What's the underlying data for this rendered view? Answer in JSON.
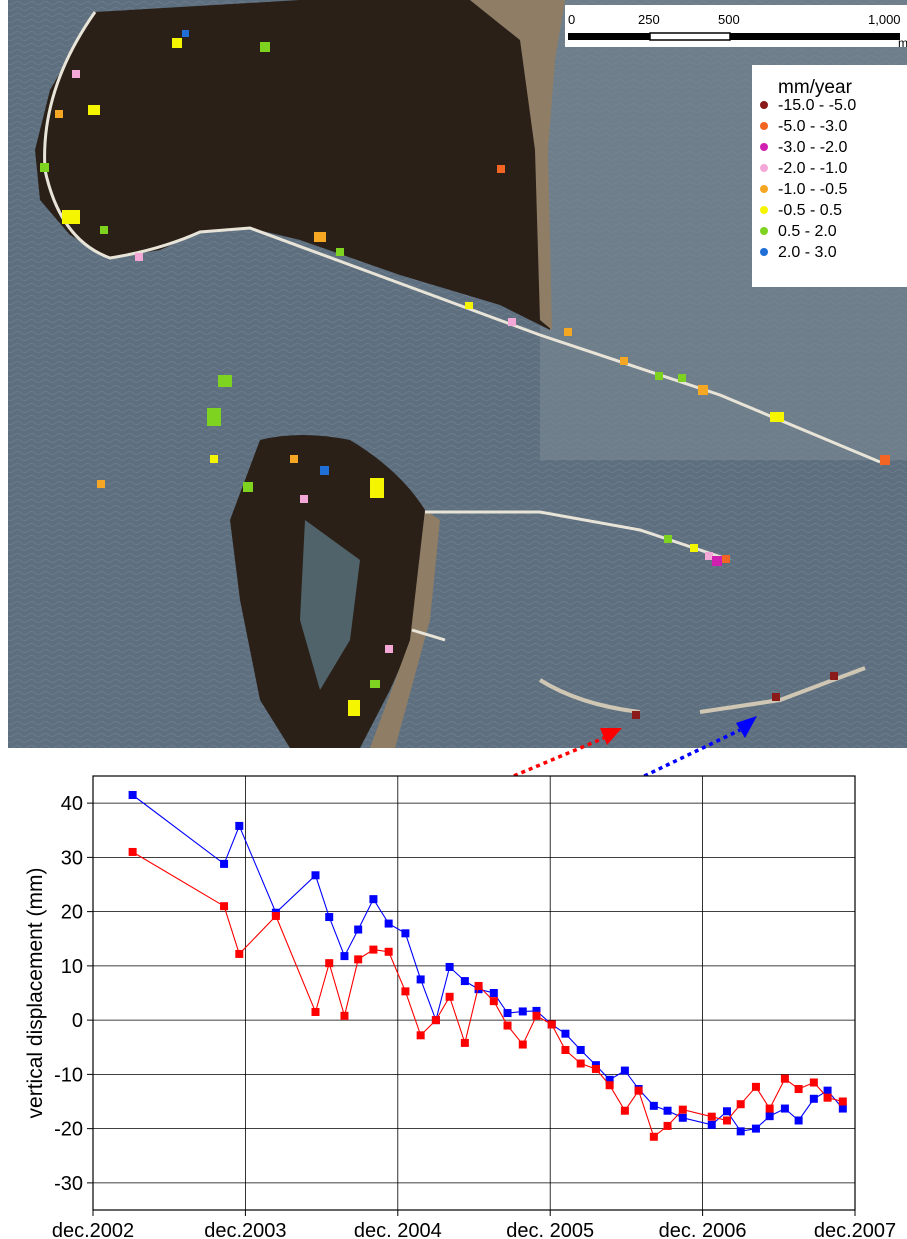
{
  "map": {
    "scale_bar": {
      "ticks": [
        "0",
        "250",
        "500",
        "1,000"
      ],
      "unit": "m"
    },
    "legend": {
      "title": "mm/year",
      "classes": [
        {
          "label": "-15.0  -  -5.0",
          "color": "#8b1a1a"
        },
        {
          "label": "-5.0  -  -3.0",
          "color": "#f26522"
        },
        {
          "label": "-3.0  -  -2.0",
          "color": "#d020b0"
        },
        {
          "label": "-2.0  -  -1.0",
          "color": "#f4a8d8"
        },
        {
          "label": "-1.0  -  -0.5",
          "color": "#f5a623"
        },
        {
          "label": "-0.5  -   0.5",
          "color": "#f5f500"
        },
        {
          "label": "0.5  -   2.0",
          "color": "#7ed321"
        },
        {
          "label": "2.0  -   3.0",
          "color": "#1f6fd6"
        }
      ]
    },
    "colors": {
      "water": "#5e6f7f",
      "land": "#2a2018",
      "beach": "#8f7d65",
      "jetty": "#e8e4d8"
    }
  },
  "chart_data": {
    "type": "line",
    "title": "",
    "xlabel": "",
    "ylabel": "vertical displacement (mm)",
    "x_tick_labels": [
      "dec.2002",
      "dec.2003",
      "dec. 2004",
      "dec. 2005",
      "dec. 2006",
      "dec.2007"
    ],
    "xlim": [
      2002.92,
      2007.92
    ],
    "ylim": [
      -35,
      45
    ],
    "y_ticks": [
      40,
      30,
      20,
      10,
      0,
      -10,
      -20,
      -30
    ],
    "grid": true,
    "series": [
      {
        "color": "#0000ff",
        "x": [
          2003.18,
          2003.78,
          2003.88,
          2004.12,
          2004.38,
          2004.47,
          2004.57,
          2004.66,
          2004.76,
          2004.86,
          2004.97,
          2005.07,
          2005.17,
          2005.26,
          2005.36,
          2005.45,
          2005.55,
          2005.64,
          2005.74,
          2005.83,
          2005.93,
          2006.02,
          2006.12,
          2006.22,
          2006.31,
          2006.41,
          2006.5,
          2006.6,
          2006.69,
          2006.79,
          2006.98,
          2007.08,
          2007.17,
          2007.27,
          2007.36,
          2007.46,
          2007.55,
          2007.65,
          2007.74,
          2007.84
        ],
        "y": [
          41.5,
          28.8,
          35.8,
          19.8,
          26.7,
          19.0,
          11.8,
          16.7,
          22.3,
          17.8,
          16.0,
          7.5,
          0.0,
          9.8,
          7.2,
          5.7,
          5.0,
          1.3,
          1.6,
          1.7,
          -0.8,
          -2.5,
          -5.5,
          -8.3,
          -11.0,
          -9.3,
          -12.7,
          -15.8,
          -16.7,
          -18.0,
          -19.3,
          -16.8,
          -20.5,
          -20.0,
          -17.7,
          -16.3,
          -18.5,
          -14.5,
          -13.0,
          -16.3
        ]
      },
      {
        "color": "#ff0000",
        "x": [
          2003.18,
          2003.78,
          2003.88,
          2004.12,
          2004.38,
          2004.47,
          2004.57,
          2004.66,
          2004.76,
          2004.86,
          2004.97,
          2005.07,
          2005.17,
          2005.26,
          2005.36,
          2005.45,
          2005.55,
          2005.64,
          2005.74,
          2005.83,
          2005.93,
          2006.02,
          2006.12,
          2006.22,
          2006.31,
          2006.41,
          2006.5,
          2006.6,
          2006.69,
          2006.79,
          2006.98,
          2007.08,
          2007.17,
          2007.27,
          2007.36,
          2007.46,
          2007.55,
          2007.65,
          2007.74,
          2007.84
        ],
        "y": [
          31.0,
          21.0,
          12.2,
          19.2,
          1.5,
          10.5,
          0.8,
          11.2,
          13.0,
          12.6,
          5.3,
          -2.8,
          0.0,
          4.3,
          -4.2,
          6.3,
          3.5,
          -1.0,
          -4.5,
          0.8,
          -0.8,
          -5.5,
          -8.0,
          -9.0,
          -12.0,
          -16.7,
          -13.0,
          -21.5,
          -19.5,
          -16.5,
          -17.8,
          -18.5,
          -15.5,
          -12.3,
          -16.3,
          -10.8,
          -12.7,
          -11.5,
          -14.3,
          -15.0
        ]
      }
    ]
  }
}
